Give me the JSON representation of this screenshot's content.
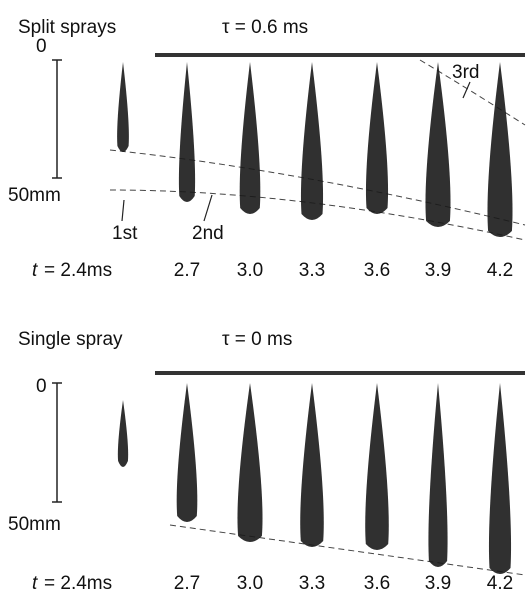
{
  "panels": [
    {
      "title": "Split sprays",
      "tau": "τ = 0.6 ms",
      "scale_top": "0",
      "scale_bottom": "50mm",
      "time_symbol": "t",
      "times": [
        "= 2.4ms",
        "2.7",
        "3.0",
        "3.3",
        "3.6",
        "3.9",
        "4.2"
      ],
      "annotations": [
        "1st",
        "2nd",
        "3rd"
      ]
    },
    {
      "title": "Single spray",
      "tau": "τ = 0 ms",
      "scale_top": "0",
      "scale_bottom": "50mm",
      "time_symbol": "t",
      "times": [
        "= 2.4ms",
        "2.7",
        "3.0",
        "3.3",
        "3.6",
        "3.9",
        "4.2"
      ]
    }
  ]
}
